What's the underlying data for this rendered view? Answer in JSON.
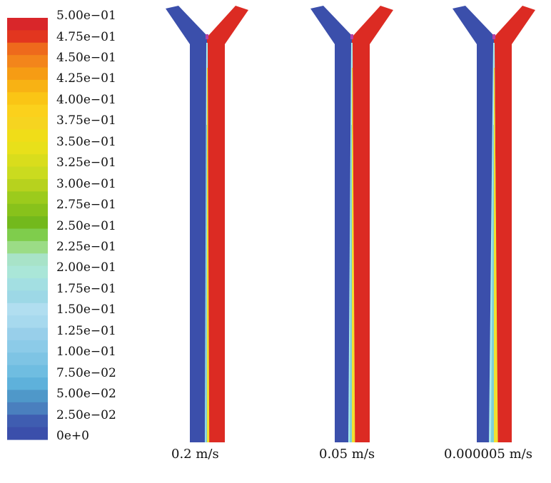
{
  "colorbar": {
    "ticks": [
      "5.00e−01",
      "4.75e−01",
      "4.50e−01",
      "4.25e−01",
      "4.00e−01",
      "3.75e−01",
      "3.50e−01",
      "3.25e−01",
      "3.00e−01",
      "2.75e−01",
      "2.50e−01",
      "2.25e−01",
      "2.00e−01",
      "1.75e−01",
      "1.50e−01",
      "1.25e−01",
      "1.00e−01",
      "7.50e−02",
      "5.00e−02",
      "2.50e−02",
      "0e+0"
    ],
    "colors": [
      "#d9262a",
      "#e2361f",
      "#ee6a1c",
      "#f3851b",
      "#f69c14",
      "#f8b214",
      "#fac515",
      "#fbd11c",
      "#f6d420",
      "#f0dd18",
      "#e8e01a",
      "#d9dd1c",
      "#cadb1f",
      "#b7d21e",
      "#9ccb1c",
      "#88c21b",
      "#73b91c",
      "#7fcd4c",
      "#9bdc86",
      "#a8e3c8",
      "#aae6d8",
      "#a3dfe2",
      "#9dd8e6",
      "#b1def0",
      "#a7d9ee",
      "#98cfea",
      "#8ccbe8",
      "#7ec4e4",
      "#6fbde1",
      "#5eb1db",
      "#4f98c9",
      "#4a7fbe",
      "#3f5db1",
      "#3b4fab"
    ]
  },
  "simulations": [
    {
      "caption": "0.2 m/s"
    },
    {
      "caption": "0.05 m/s"
    },
    {
      "caption": "0.000005 m/s"
    }
  ],
  "colors": {
    "blue": "#3b4fab",
    "red": "#dc2b23",
    "interface_cyan": "#a8ecec",
    "interface_yellow": "#f0e030"
  }
}
